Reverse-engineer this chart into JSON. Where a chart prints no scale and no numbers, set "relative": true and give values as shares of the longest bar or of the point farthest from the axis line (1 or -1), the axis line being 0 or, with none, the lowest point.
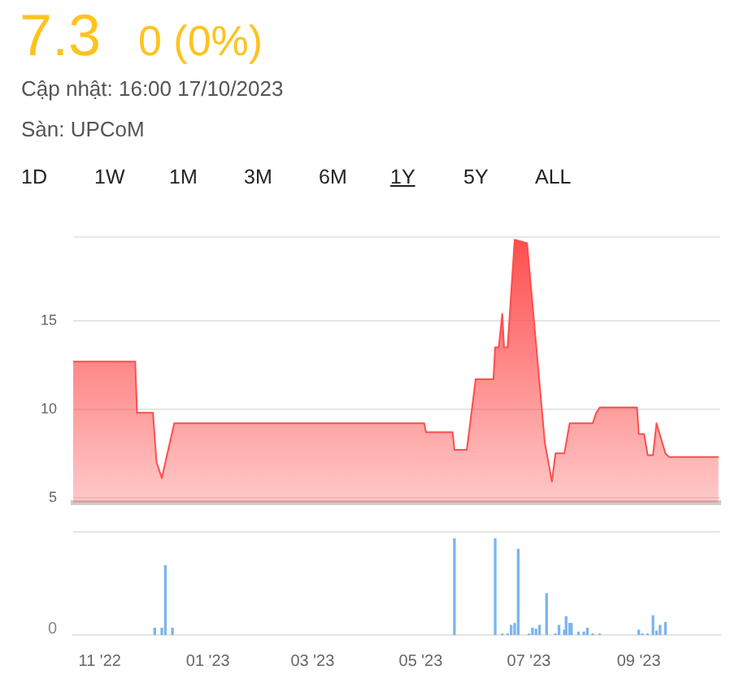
{
  "chart_data": [
    {
      "type": "other",
      "title": "7.3",
      "subtitle": "0 (0%)",
      "annotations": [
        "Cập nhật: 16:00 17/10/2023",
        "Sàn: UPCoM",
        "1D",
        "1W",
        "1M",
        "3M",
        "6M",
        "1Y",
        "5Y",
        "ALL"
      ]
    },
    {
      "type": "area",
      "xlim": [
        "2022-10-17",
        "2023-10-17"
      ],
      "ylim": [
        4.7,
        19.8
      ],
      "yticks": [
        5,
        10,
        15
      ],
      "grid": "y",
      "tick_labels": "y",
      "legend": false,
      "series": [
        {
          "color": "#ff4d4d",
          "x": [
            "2022-10-17",
            "2022-11-21",
            "2022-11-22",
            "2022-12-01",
            "2022-12-03",
            "2022-12-06",
            "2022-12-08",
            "2022-12-13",
            "2023-05-03",
            "2023-05-04",
            "2023-05-19",
            "2023-05-20",
            "2023-05-27",
            "2023-06-01",
            "2023-06-11",
            "2023-06-12",
            "2023-06-14",
            "2023-06-16",
            "2023-06-17",
            "2023-06-19",
            "2023-06-23",
            "2023-06-30",
            "2023-07-10",
            "2023-07-14",
            "2023-07-16",
            "2023-07-21",
            "2023-07-24",
            "2023-08-06",
            "2023-08-08",
            "2023-08-10",
            "2023-08-31",
            "2023-09-01",
            "2023-09-04",
            "2023-09-06",
            "2023-09-09",
            "2023-09-11",
            "2023-09-16",
            "2023-09-18",
            "2023-10-16"
          ],
          "values": [
            12.7,
            12.7,
            9.8,
            9.8,
            7.0,
            6.1,
            7.0,
            9.2,
            9.2,
            8.7,
            8.7,
            7.7,
            7.7,
            11.7,
            11.7,
            13.5,
            13.5,
            15.4,
            13.5,
            13.5,
            19.6,
            19.4,
            8.1,
            5.9,
            7.5,
            7.5,
            9.2,
            9.2,
            9.8,
            10.1,
            10.1,
            8.6,
            8.6,
            7.4,
            7.4,
            9.2,
            7.5,
            7.3,
            7.3
          ]
        }
      ]
    },
    {
      "type": "bar",
      "relative": true,
      "xlim": [
        "2022-10-17",
        "2023-10-17"
      ],
      "xticks": [
        {
          "value": "2022-11-01",
          "label": "11 '22"
        },
        {
          "value": "2023-01-01",
          "label": "01 '23"
        },
        {
          "value": "2023-03-01",
          "label": "03 '23"
        },
        {
          "value": "2023-05-01",
          "label": "05 '23"
        },
        {
          "value": "2023-07-01",
          "label": "07 '23"
        },
        {
          "value": "2023-09-01",
          "label": "09 '23"
        }
      ],
      "tick_labels": "x",
      "legend": false,
      "annotations": [
        "0"
      ],
      "series": [
        {
          "color": "#7cb5ec",
          "x": [
            "2022-12-02",
            "2022-12-06",
            "2022-12-08",
            "2022-12-12",
            "2023-05-20",
            "2023-06-12",
            "2023-06-16",
            "2023-06-19",
            "2023-06-21",
            "2023-06-23",
            "2023-06-25",
            "2023-07-01",
            "2023-07-03",
            "2023-07-05",
            "2023-07-07",
            "2023-07-11",
            "2023-07-16",
            "2023-07-18",
            "2023-07-21",
            "2023-07-22",
            "2023-07-24",
            "2023-07-25",
            "2023-07-29",
            "2023-08-01",
            "2023-08-03",
            "2023-08-06",
            "2023-08-10",
            "2023-09-01",
            "2023-09-03",
            "2023-09-06",
            "2023-09-09",
            "2023-09-11",
            "2023-09-13",
            "2023-09-16"
          ],
          "values": [
            0.07,
            0.07,
            0.72,
            0.07,
            1,
            1,
            0.01,
            0.01,
            0.1,
            0.12,
            0.89,
            0.01,
            0.07,
            0.06,
            0.1,
            0.43,
            0.01,
            0.1,
            0.05,
            0.19,
            0.12,
            0.12,
            0.03,
            0.03,
            0.07,
            0.01,
            0.01,
            0.05,
            0.01,
            0.01,
            0.2,
            0.04,
            0.1,
            0.13
          ]
        }
      ]
    }
  ]
}
